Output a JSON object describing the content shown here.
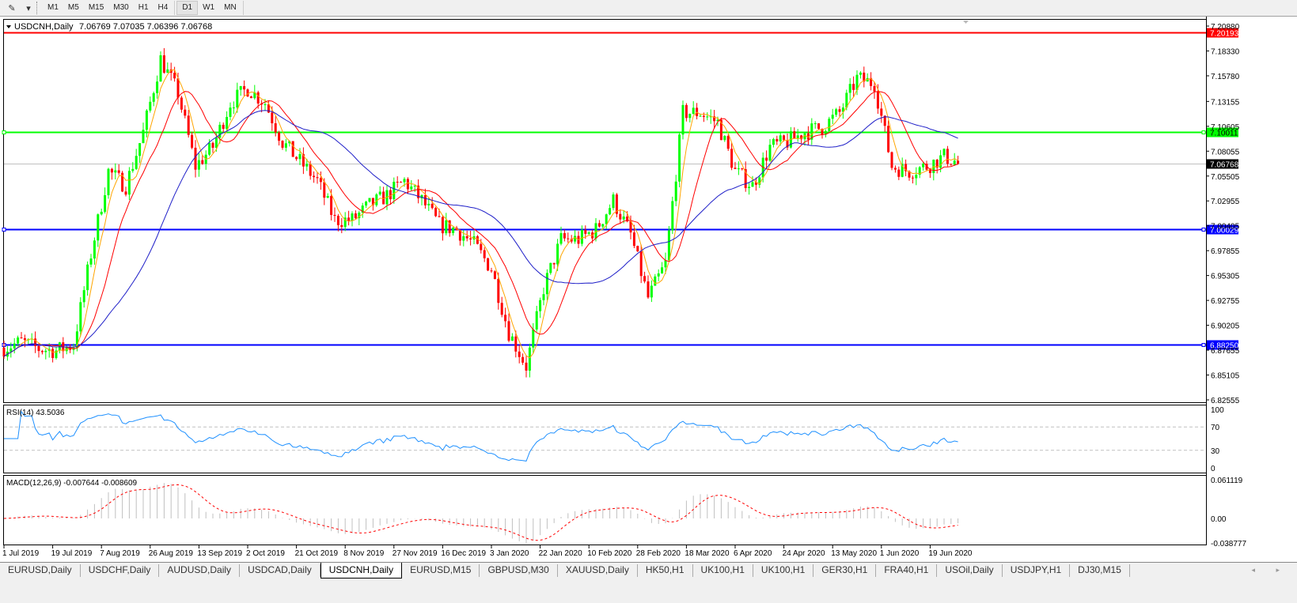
{
  "toolbar": {
    "timeframes": [
      "M1",
      "M5",
      "M15",
      "M30",
      "H1",
      "H4",
      "D1",
      "W1",
      "MN"
    ],
    "active_timeframe": "D1",
    "tool_icon": "line-tool-icon",
    "dropdown_icon": "chevron-down-icon"
  },
  "chart_header": {
    "symbol": "USDCNH,Daily",
    "ohlc": "7.06769 7.07035 7.06396 7.06768"
  },
  "rsi_header": "RSI(14) 43.5036",
  "macd_header": "MACD(12,26,9) -0.007644 -0.008609",
  "colors": {
    "background": "#ffffff",
    "bull_candle": "#00ff00",
    "bear_candle": "#ff0000",
    "ma_fast": "#ffa500",
    "ma_mid": "#ff0000",
    "ma_slow": "#1e1ec8",
    "rsi_line": "#1e90ff",
    "macd_hist": "#c0c0c0",
    "macd_signal": "#ff0000"
  },
  "chart_data": [
    {
      "type": "candlestick",
      "title": "USDCNH,Daily",
      "ylim": [
        6.82555,
        7.2088
      ],
      "y_ticks": [
        "7.20880",
        "7.18330",
        "7.15780",
        "7.13155",
        "7.10605",
        "7.08055",
        "7.05505",
        "7.02955",
        "7.00405",
        "6.97855",
        "6.95305",
        "6.92755",
        "6.90205",
        "6.87655",
        "6.85105",
        "6.82555"
      ],
      "x_ticks": [
        "1 Jul 2019",
        "19 Jul 2019",
        "7 Aug 2019",
        "26 Aug 2019",
        "13 Sep 2019",
        "2 Oct 2019",
        "21 Oct 2019",
        "8 Nov 2019",
        "27 Nov 2019",
        "16 Dec 2019",
        "3 Jan 2020",
        "22 Jan 2020",
        "10 Feb 2020",
        "28 Feb 2020",
        "18 Mar 2020",
        "6 Apr 2020",
        "24 Apr 2020",
        "13 May 2020",
        "1 Jun 2020",
        "19 Jun 2020"
      ],
      "weekly_close": [
        6.879,
        6.885,
        6.878,
        6.876,
        6.882,
        6.975,
        7.06,
        7.045,
        7.1,
        7.175,
        7.14,
        7.065,
        7.085,
        7.13,
        7.145,
        7.13,
        7.09,
        7.07,
        7.05,
        7.01,
        7.01,
        7.025,
        7.035,
        7.05,
        7.03,
        7.005,
        7.0,
        6.985,
        6.96,
        6.895,
        6.86,
        6.94,
        6.99,
        6.99,
        7.0,
        7.03,
        6.995,
        6.93,
        6.965,
        7.12,
        7.12,
        7.11,
        7.06,
        7.045,
        7.085,
        7.09,
        7.1,
        7.105,
        7.12,
        7.155,
        7.15,
        7.065,
        7.06,
        7.065,
        7.075,
        7.06768
      ],
      "last_price": "7.06768",
      "moving_averages": [
        "fast",
        "mid",
        "slow"
      ],
      "horizontal_lines": [
        {
          "price": "7.20193",
          "color": "#ff0000"
        },
        {
          "price": "7.10011",
          "color": "#00ff00"
        },
        {
          "price": "7.00029",
          "color": "#0000ff"
        },
        {
          "price": "6.88250",
          "color": "#0000ff"
        }
      ]
    },
    {
      "type": "line",
      "title": "RSI(14) 43.5036",
      "ylim": [
        0,
        100
      ],
      "y_ticks": [
        "100",
        "70",
        "30",
        "0"
      ],
      "levels": [
        70,
        30
      ]
    },
    {
      "type": "bar",
      "title": "MACD(12,26,9) -0.007644 -0.008609",
      "ylim": [
        -0.038777,
        0.061119
      ],
      "y_ticks": [
        "0.061119",
        "0.00",
        "-0.038777"
      ]
    }
  ],
  "tabs": [
    "EURUSD,Daily",
    "USDCHF,Daily",
    "AUDUSD,Daily",
    "USDCAD,Daily",
    "USDCNH,Daily",
    "EURUSD,M15",
    "GBPUSD,M30",
    "XAUUSD,Daily",
    "HK50,H1",
    "UK100,H1",
    "UK100,H1",
    "GER30,H1",
    "FRA40,H1",
    "USOil,Daily",
    "USDJPY,H1",
    "DJ30,M15"
  ],
  "active_tab": "USDCNH,Daily",
  "tab_scroll": "◂ ▸"
}
